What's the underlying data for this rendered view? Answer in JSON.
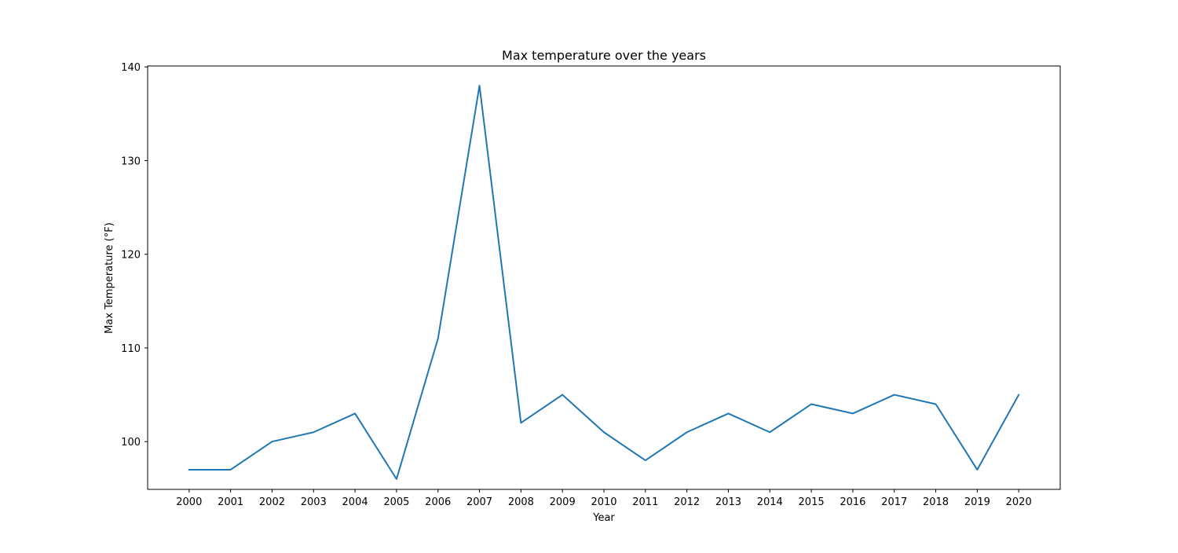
{
  "chart_data": {
    "type": "line",
    "title": "Max temperature over the years",
    "xlabel": "Year",
    "ylabel": "Max Temperature (°F)",
    "x": [
      2000,
      2001,
      2002,
      2003,
      2004,
      2005,
      2006,
      2007,
      2008,
      2009,
      2010,
      2011,
      2012,
      2013,
      2014,
      2015,
      2016,
      2017,
      2018,
      2019,
      2020
    ],
    "series": [
      {
        "values": [
          97,
          97,
          100,
          101,
          103,
          96,
          111,
          138,
          102,
          105,
          101,
          98,
          101,
          103,
          101,
          104,
          103,
          105,
          104,
          97,
          105
        ]
      }
    ],
    "xlim": [
      1999,
      2021
    ],
    "ylim": [
      94.9,
      140.1
    ],
    "yticks": [
      100,
      110,
      120,
      130,
      140
    ],
    "grid": false,
    "line_color": "#1f77b4"
  }
}
